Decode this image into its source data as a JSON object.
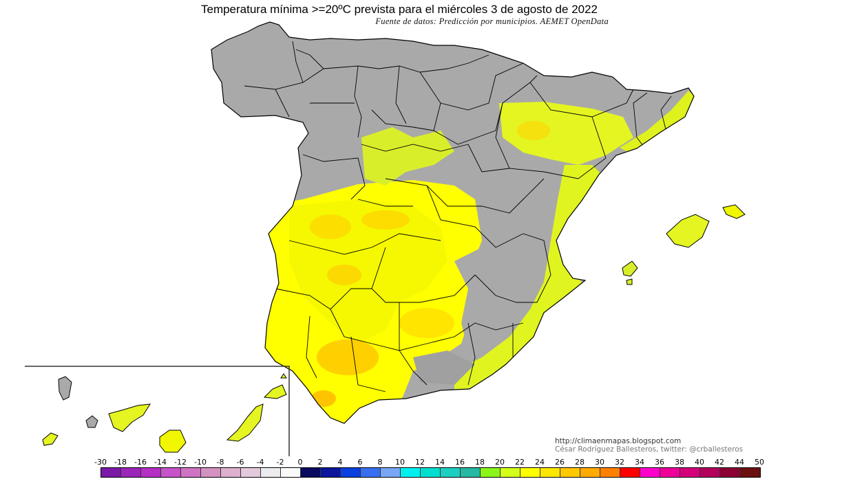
{
  "title": "Temperatura mínima >=20ºC prevista para el miércoles 3 de agosto de 2022",
  "subtitle": "Fuente de datos: Predicción por municipios. AEMET OpenData",
  "credits": {
    "website": "http://climaenmapas.blogspot.com",
    "author": "César Rodríguez Ballesteros, twitter: @crballesteros"
  },
  "legend": {
    "labels": [
      "-30",
      "-18",
      "-16",
      "-14",
      "-12",
      "-10",
      "-8",
      "-6",
      "-4",
      "-2",
      "0",
      "2",
      "4",
      "6",
      "8",
      "10",
      "12",
      "14",
      "16",
      "18",
      "20",
      "22",
      "24",
      "26",
      "28",
      "30",
      "32",
      "34",
      "36",
      "38",
      "40",
      "42",
      "44",
      "50"
    ],
    "colors": [
      "#7a1aa8",
      "#9b26b8",
      "#b530c4",
      "#c653c8",
      "#cf74c2",
      "#d392bf",
      "#ddb0cd",
      "#e4c9dc",
      "#ececf0",
      "#fafafa",
      "#0a0a5e",
      "#0b169c",
      "#0b3fe0",
      "#3a6ef0",
      "#78a6f5",
      "#00f0f0",
      "#00dfcf",
      "#1ccfc0",
      "#25b8a2",
      "#8bf51a",
      "#d4ff1a",
      "#ffff00",
      "#ffe600",
      "#ffc800",
      "#ffaa00",
      "#ff8000",
      "#ff0000",
      "#ff00cc",
      "#ee0099",
      "#d4007a",
      "#b3005c",
      "#8c0033",
      "#6b1010"
    ]
  },
  "map": {
    "regions": [
      "Peninsula",
      "Baleares",
      "Canarias"
    ],
    "threshold_c": 20
  }
}
